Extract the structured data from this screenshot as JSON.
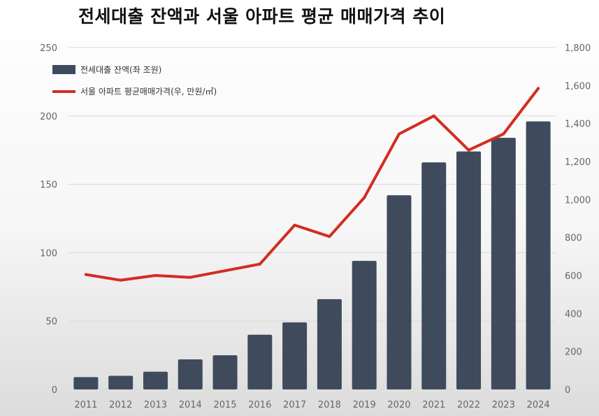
{
  "chart_data": {
    "type": "bar",
    "title": "전세대출 잔액과 서울 아파트 평균 매매가격 추이",
    "categories": [
      "2011",
      "2012",
      "2013",
      "2014",
      "2015",
      "2016",
      "2017",
      "2018",
      "2019",
      "2020",
      "2021",
      "2022",
      "2023",
      "2024"
    ],
    "series": [
      {
        "name": "전세대출 잔액(좌 조원)",
        "type": "bar",
        "axis": "left",
        "color": "#3f4b5c",
        "values": [
          9,
          10,
          13,
          22,
          25,
          40,
          49,
          66,
          94,
          142,
          166,
          174,
          184,
          196
        ]
      },
      {
        "name": "서울 아파트 평균매매가격(우, 만원/㎡)",
        "type": "line",
        "axis": "right",
        "color": "#d42c22",
        "values": [
          605,
          575,
          600,
          590,
          625,
          660,
          865,
          805,
          1010,
          1345,
          1440,
          1260,
          1345,
          1585
        ]
      }
    ],
    "y_left": {
      "ylim": [
        0,
        250
      ],
      "ticks": [
        0,
        50,
        100,
        150,
        200,
        250
      ]
    },
    "y_right": {
      "ylim": [
        0,
        1800
      ],
      "ticks": [
        "0",
        "200",
        "400",
        "600",
        "800",
        "1,000",
        "1,200",
        "1,400",
        "1,600",
        "1,800"
      ],
      "tick_values": [
        0,
        200,
        400,
        600,
        800,
        1000,
        1200,
        1400,
        1600,
        1800
      ]
    },
    "grid": true,
    "legend": "top-left"
  }
}
